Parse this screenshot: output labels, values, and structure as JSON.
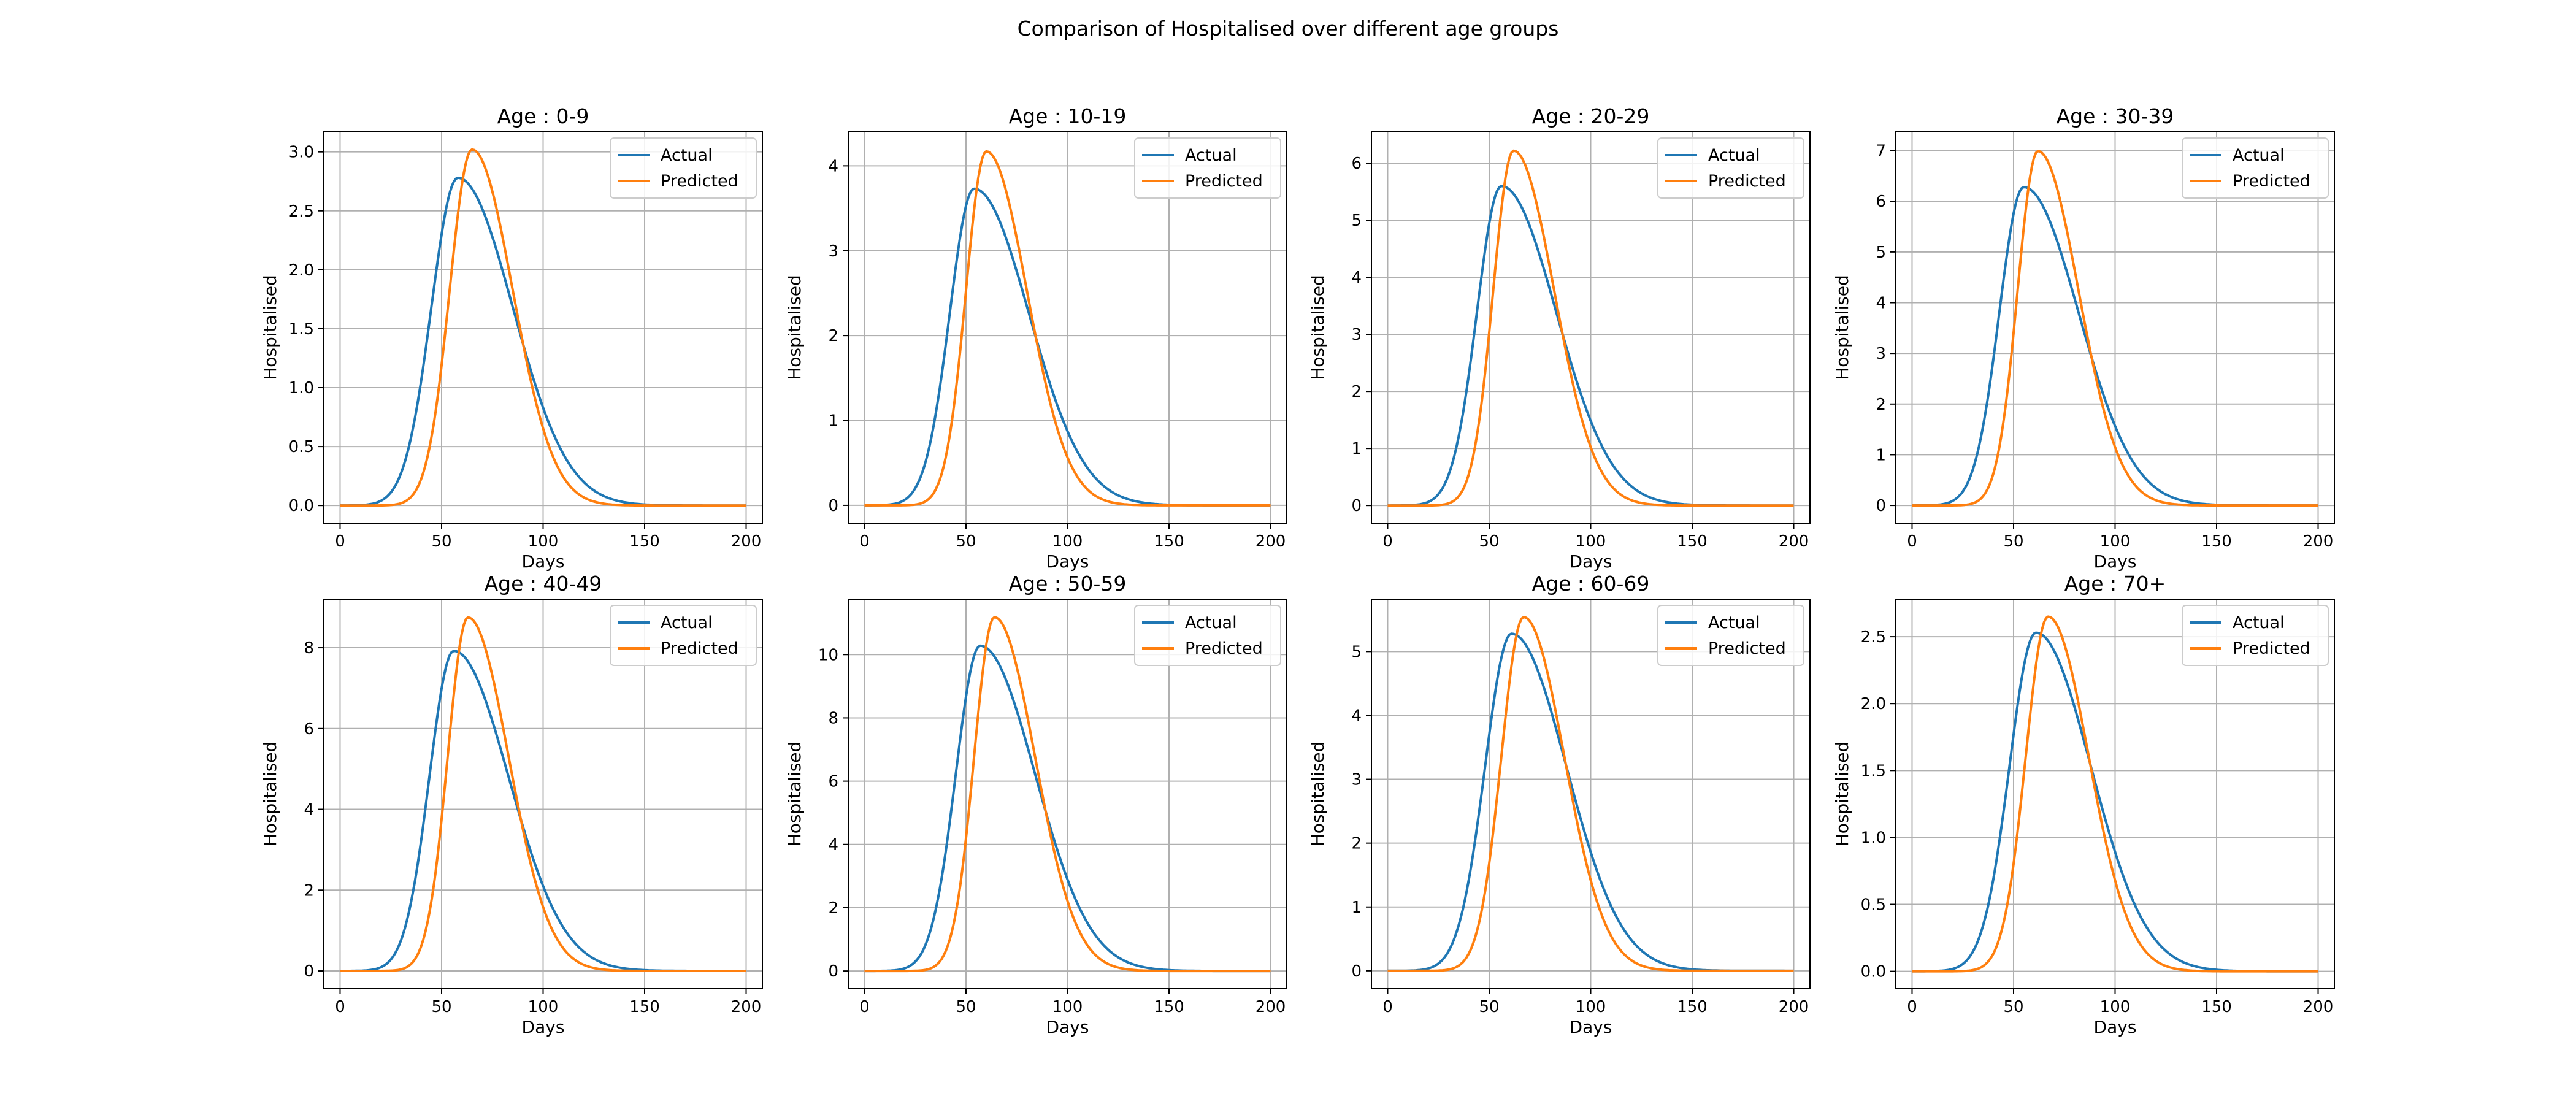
{
  "figure": {
    "title": "Comparison of Hospitalised over different age groups"
  },
  "colors": {
    "actual": "#1f77b4",
    "predicted": "#ff7f0e",
    "grid": "#b0b0b0",
    "frame": "#000000"
  },
  "chart_data": [
    {
      "type": "line",
      "title": "Age : 0-9",
      "xlabel": "Days",
      "ylabel": "Hospitalised",
      "xlim": [
        -8,
        208
      ],
      "ylim": [
        -0.15,
        3.17
      ],
      "xticks": [
        0,
        50,
        100,
        150,
        200
      ],
      "yticks": [
        0.0,
        0.5,
        1.0,
        1.5,
        2.0,
        2.5,
        3.0
      ],
      "ytick_labels": [
        "0.0",
        "0.5",
        "1.0",
        "1.5",
        "2.0",
        "2.5",
        "3.0"
      ],
      "legend": "top-right",
      "series": [
        {
          "name": "Actual",
          "peak_day": 58,
          "peak_value": 2.78,
          "rise_width": 13,
          "decay_width": 27,
          "x_range": [
            0,
            200
          ]
        },
        {
          "name": "Predicted",
          "peak_day": 65,
          "peak_value": 3.02,
          "rise_width": 11,
          "decay_width": 20,
          "x_range": [
            0,
            200
          ]
        }
      ]
    },
    {
      "type": "line",
      "title": "Age : 10-19",
      "xlabel": "Days",
      "ylabel": "Hospitalised",
      "xlim": [
        -8,
        208
      ],
      "ylim": [
        -0.21,
        4.4
      ],
      "xticks": [
        0,
        50,
        100,
        150,
        200
      ],
      "yticks": [
        0,
        1,
        2,
        3,
        4
      ],
      "ytick_labels": [
        "0",
        "1",
        "2",
        "3",
        "4"
      ],
      "legend": "top-right",
      "series": [
        {
          "name": "Actual",
          "peak_day": 54,
          "peak_value": 3.73,
          "rise_width": 12,
          "decay_width": 27,
          "x_range": [
            0,
            200
          ]
        },
        {
          "name": "Predicted",
          "peak_day": 60,
          "peak_value": 4.17,
          "rise_width": 10,
          "decay_width": 20,
          "x_range": [
            0,
            200
          ]
        }
      ]
    },
    {
      "type": "line",
      "title": "Age : 20-29",
      "xlabel": "Days",
      "ylabel": "Hospitalised",
      "xlim": [
        -8,
        208
      ],
      "ylim": [
        -0.31,
        6.55
      ],
      "xticks": [
        0,
        50,
        100,
        150,
        200
      ],
      "yticks": [
        0,
        1,
        2,
        3,
        4,
        5,
        6
      ],
      "ytick_labels": [
        "0",
        "1",
        "2",
        "3",
        "4",
        "5",
        "6"
      ],
      "legend": "top-right",
      "series": [
        {
          "name": "Actual",
          "peak_day": 56,
          "peak_value": 5.6,
          "rise_width": 12,
          "decay_width": 27,
          "x_range": [
            0,
            200
          ]
        },
        {
          "name": "Predicted",
          "peak_day": 62,
          "peak_value": 6.22,
          "rise_width": 10,
          "decay_width": 20,
          "x_range": [
            0,
            200
          ]
        }
      ]
    },
    {
      "type": "line",
      "title": "Age : 30-39",
      "xlabel": "Days",
      "ylabel": "Hospitalised",
      "xlim": [
        -8,
        208
      ],
      "ylim": [
        -0.35,
        7.37
      ],
      "xticks": [
        0,
        50,
        100,
        150,
        200
      ],
      "yticks": [
        0,
        1,
        2,
        3,
        4,
        5,
        6,
        7
      ],
      "ytick_labels": [
        "0",
        "1",
        "2",
        "3",
        "4",
        "5",
        "6",
        "7"
      ],
      "legend": "top-right",
      "series": [
        {
          "name": "Actual",
          "peak_day": 55,
          "peak_value": 6.28,
          "rise_width": 12,
          "decay_width": 27,
          "x_range": [
            0,
            200
          ]
        },
        {
          "name": "Predicted",
          "peak_day": 62,
          "peak_value": 6.99,
          "rise_width": 10,
          "decay_width": 20,
          "x_range": [
            0,
            200
          ]
        }
      ]
    },
    {
      "type": "line",
      "title": "Age : 40-49",
      "xlabel": "Days",
      "ylabel": "Hospitalised",
      "xlim": [
        -8,
        208
      ],
      "ylim": [
        -0.44,
        9.2
      ],
      "xticks": [
        0,
        50,
        100,
        150,
        200
      ],
      "yticks": [
        0,
        2,
        4,
        6,
        8
      ],
      "ytick_labels": [
        "0",
        "2",
        "4",
        "6",
        "8"
      ],
      "legend": "top-right",
      "series": [
        {
          "name": "Actual",
          "peak_day": 56,
          "peak_value": 7.92,
          "rise_width": 12,
          "decay_width": 27,
          "x_range": [
            0,
            200
          ]
        },
        {
          "name": "Predicted",
          "peak_day": 63,
          "peak_value": 8.75,
          "rise_width": 10,
          "decay_width": 20,
          "x_range": [
            0,
            200
          ]
        }
      ]
    },
    {
      "type": "line",
      "title": "Age : 50-59",
      "xlabel": "Days",
      "ylabel": "Hospitalised",
      "xlim": [
        -8,
        208
      ],
      "ylim": [
        -0.56,
        11.75
      ],
      "xticks": [
        0,
        50,
        100,
        150,
        200
      ],
      "yticks": [
        0,
        2,
        4,
        6,
        8,
        10
      ],
      "ytick_labels": [
        "0",
        "2",
        "4",
        "6",
        "8",
        "10"
      ],
      "legend": "top-right",
      "series": [
        {
          "name": "Actual",
          "peak_day": 57,
          "peak_value": 10.28,
          "rise_width": 12,
          "decay_width": 27,
          "x_range": [
            0,
            200
          ]
        },
        {
          "name": "Predicted",
          "peak_day": 64,
          "peak_value": 11.18,
          "rise_width": 10,
          "decay_width": 20,
          "x_range": [
            0,
            200
          ]
        }
      ]
    },
    {
      "type": "line",
      "title": "Age : 60-69",
      "xlabel": "Days",
      "ylabel": "Hospitalised",
      "xlim": [
        -8,
        208
      ],
      "ylim": [
        -0.28,
        5.82
      ],
      "xticks": [
        0,
        50,
        100,
        150,
        200
      ],
      "yticks": [
        0,
        1,
        2,
        3,
        4,
        5
      ],
      "ytick_labels": [
        "0",
        "1",
        "2",
        "3",
        "4",
        "5"
      ],
      "legend": "top-right",
      "series": [
        {
          "name": "Actual",
          "peak_day": 61,
          "peak_value": 5.28,
          "rise_width": 13,
          "decay_width": 27,
          "x_range": [
            0,
            200
          ]
        },
        {
          "name": "Predicted",
          "peak_day": 67,
          "peak_value": 5.54,
          "rise_width": 11,
          "decay_width": 20,
          "x_range": [
            0,
            200
          ]
        }
      ]
    },
    {
      "type": "line",
      "title": "Age : 70+",
      "xlabel": "Days",
      "ylabel": "Hospitalised",
      "xlim": [
        -8,
        208
      ],
      "ylim": [
        -0.13,
        2.78
      ],
      "xticks": [
        0,
        50,
        100,
        150,
        200
      ],
      "yticks": [
        0.0,
        0.5,
        1.0,
        1.5,
        2.0,
        2.5
      ],
      "ytick_labels": [
        "0.0",
        "0.5",
        "1.0",
        "1.5",
        "2.0",
        "2.5"
      ],
      "legend": "top-right",
      "series": [
        {
          "name": "Actual",
          "peak_day": 61,
          "peak_value": 2.53,
          "rise_width": 13,
          "decay_width": 27,
          "x_range": [
            0,
            200
          ]
        },
        {
          "name": "Predicted",
          "peak_day": 67,
          "peak_value": 2.65,
          "rise_width": 11,
          "decay_width": 20,
          "x_range": [
            0,
            200
          ]
        }
      ]
    }
  ]
}
